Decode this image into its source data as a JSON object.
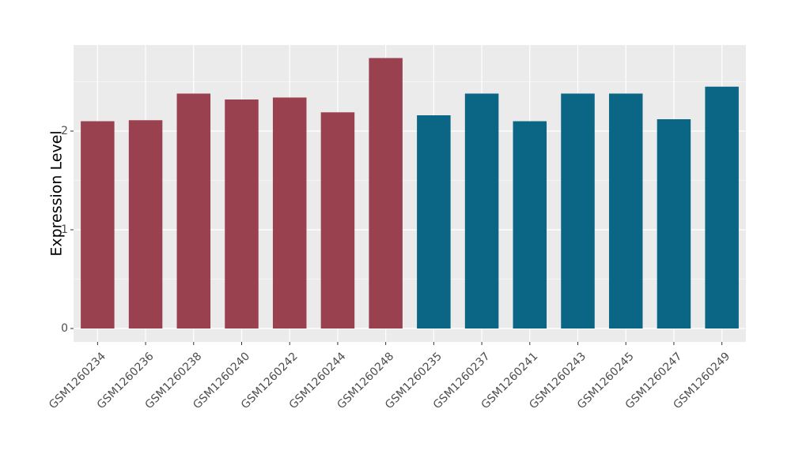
{
  "chart_data": {
    "type": "bar",
    "y_label": "Expression Level",
    "categories": [
      "GSM1260234",
      "GSM1260236",
      "GSM1260238",
      "GSM1260240",
      "GSM1260242",
      "GSM1260244",
      "GSM1260248",
      "GSM1260235",
      "GSM1260237",
      "GSM1260241",
      "GSM1260243",
      "GSM1260245",
      "GSM1260247",
      "GSM1260249"
    ],
    "values": [
      2.1,
      2.11,
      2.38,
      2.32,
      2.34,
      2.19,
      2.74,
      2.16,
      2.38,
      2.1,
      2.38,
      2.38,
      2.12,
      2.45
    ],
    "colors": [
      "#99414f",
      "#99414f",
      "#99414f",
      "#99414f",
      "#99414f",
      "#99414f",
      "#99414f",
      "#0b6585",
      "#0b6585",
      "#0b6585",
      "#0b6585",
      "#0b6585",
      "#0b6585",
      "#0b6585"
    ],
    "ylim": [
      -0.136,
      2.872
    ],
    "yticks": [
      0,
      1,
      2
    ],
    "y_minor_gridlines": [
      0.5,
      1.5,
      2.5
    ],
    "grid": true
  }
}
